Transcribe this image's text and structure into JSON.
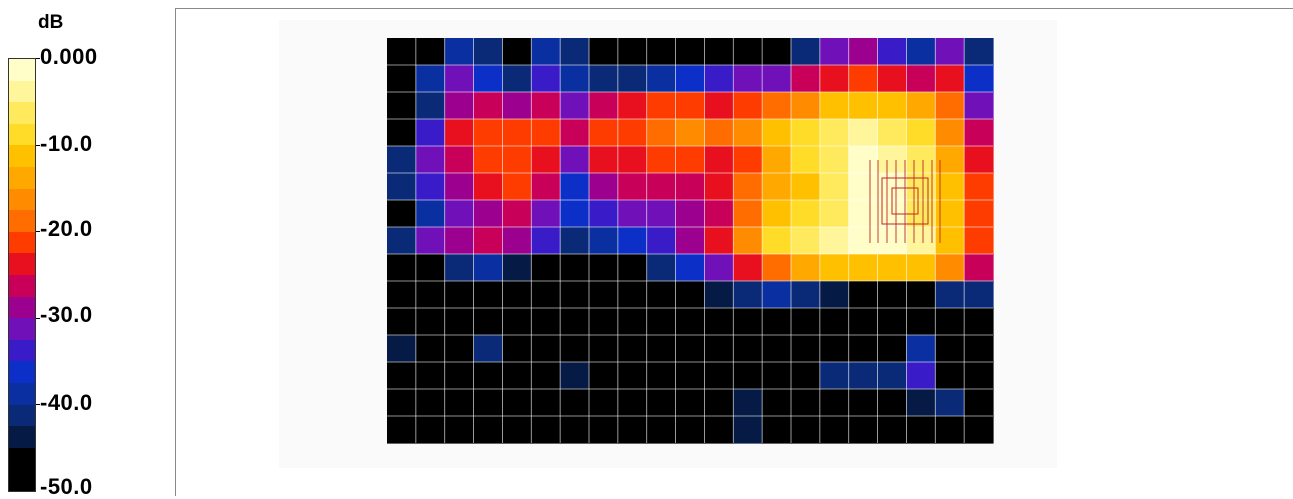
{
  "chart_data": {
    "type": "heatmap",
    "colorbar": {
      "unit": "dB",
      "ticks": [
        "0.000",
        "-10.0",
        "-20.0",
        "-30.0",
        "-40.0",
        "-50.0"
      ],
      "range": [
        -50,
        0
      ],
      "colors": [
        "#fffdc8",
        "#fff59a",
        "#ffe95c",
        "#ffdc28",
        "#ffc000",
        "#ffa800",
        "#ff8c00",
        "#ff6d00",
        "#ff3c00",
        "#e8101e",
        "#c8005a",
        "#9b008f",
        "#6f10b8",
        "#3a1bc8",
        "#0c2fc8",
        "#0a2fa0",
        "#0a2a78",
        "#061a46",
        "#000000",
        "#000000"
      ]
    },
    "grid": true,
    "columns": 21,
    "rows": 15,
    "values": [
      [
        -50,
        -45,
        -38,
        -40,
        -45,
        -38,
        -42,
        -50,
        -46,
        -48,
        -50,
        -50,
        -50,
        -46,
        -40,
        -30,
        -28,
        -33,
        -38,
        -32,
        -42
      ],
      [
        -50,
        -38,
        -32,
        -36,
        -40,
        -34,
        -38,
        -42,
        -40,
        -38,
        -36,
        -34,
        -32,
        -30,
        -27,
        -24,
        -22,
        -24,
        -27,
        -24,
        -36
      ],
      [
        -50,
        -40,
        -28,
        -26,
        -28,
        -26,
        -30,
        -26,
        -24,
        -22,
        -22,
        -24,
        -21,
        -18,
        -15,
        -12,
        -10,
        -11,
        -14,
        -18,
        -30
      ],
      [
        -45,
        -34,
        -24,
        -21,
        -20,
        -22,
        -26,
        -22,
        -20,
        -18,
        -17,
        -19,
        -16,
        -12,
        -9,
        -6,
        -4,
        -5,
        -9,
        -15,
        -25
      ],
      [
        -40,
        -30,
        -25,
        -22,
        -20,
        -24,
        -32,
        -24,
        -23,
        -22,
        -22,
        -24,
        -20,
        -13,
        -9,
        -5,
        -2,
        -3,
        -7,
        -13,
        -23
      ],
      [
        -42,
        -34,
        -28,
        -24,
        -22,
        -27,
        -36,
        -28,
        -26,
        -26,
        -25,
        -24,
        -19,
        -13,
        -10,
        -6,
        -1,
        -2,
        -6,
        -12,
        -22
      ],
      [
        -48,
        -38,
        -32,
        -28,
        -26,
        -30,
        -35,
        -34,
        -32,
        -31,
        -29,
        -25,
        -18,
        -12,
        -8,
        -5,
        -1,
        -1,
        -5,
        -11,
        -22
      ],
      [
        -42,
        -32,
        -28,
        -26,
        -29,
        -34,
        -40,
        -38,
        -37,
        -34,
        -29,
        -23,
        -16,
        -9,
        -6,
        -4,
        -1,
        -1,
        -4,
        -10,
        -21
      ],
      [
        -50,
        -46,
        -40,
        -38,
        -43,
        -46,
        -48,
        -48,
        -46,
        -42,
        -36,
        -30,
        -24,
        -19,
        -14,
        -12,
        -10,
        -10,
        -12,
        -15,
        -26
      ],
      [
        -50,
        -50,
        -48,
        -47,
        -48,
        -50,
        -50,
        -50,
        -50,
        -48,
        -46,
        -44,
        -42,
        -38,
        -40,
        -44,
        -46,
        -48,
        -46,
        -42,
        -40
      ],
      [
        -50,
        -50,
        -50,
        -50,
        -50,
        -50,
        -50,
        -50,
        -50,
        -50,
        -50,
        -50,
        -50,
        -50,
        -50,
        -50,
        -50,
        -50,
        -50,
        -50,
        -50
      ],
      [
        -44,
        -50,
        -48,
        -42,
        -50,
        -50,
        -50,
        -50,
        -50,
        -50,
        -50,
        -50,
        -50,
        -50,
        -50,
        -50,
        -50,
        -46,
        -38,
        -50,
        -50
      ],
      [
        -50,
        -50,
        -50,
        -50,
        -50,
        -50,
        -44,
        -50,
        -50,
        -50,
        -50,
        -50,
        -50,
        -50,
        -50,
        -42,
        -40,
        -40,
        -34,
        -46,
        -50
      ],
      [
        -48,
        -50,
        -50,
        -50,
        -50,
        -50,
        -50,
        -50,
        -50,
        -50,
        -50,
        -50,
        -44,
        -50,
        -50,
        -50,
        -46,
        -50,
        -44,
        -40,
        -50
      ],
      [
        -50,
        -46,
        -50,
        -48,
        -50,
        -50,
        -50,
        -50,
        -50,
        -50,
        -50,
        -50,
        -44,
        -50,
        -46,
        -50,
        -50,
        -50,
        -50,
        -50,
        -50
      ]
    ]
  }
}
